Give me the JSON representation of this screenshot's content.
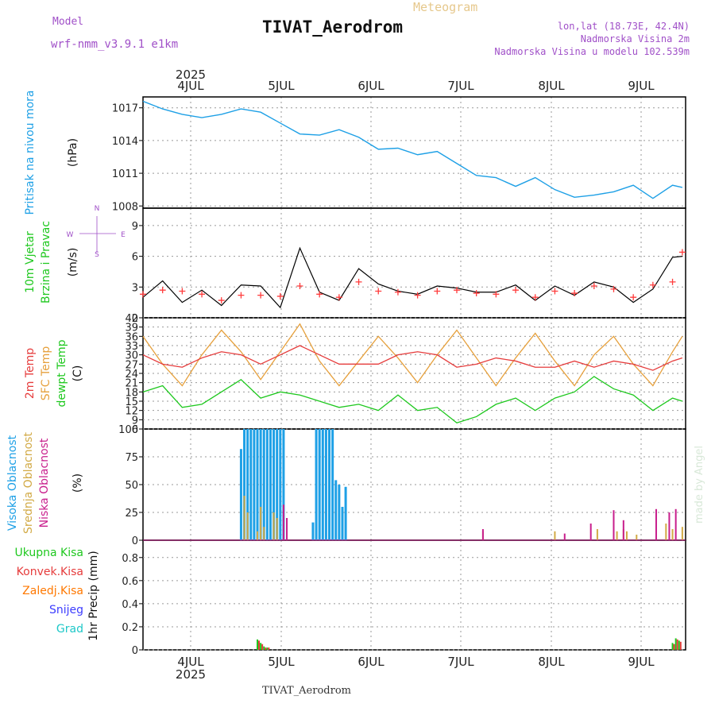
{
  "header": {
    "model_label": "Model",
    "model_name": "wrf-nmm_v3.9.1 e1km",
    "title": "TIVAT_Aerodrom",
    "product": "Meteogram",
    "lonlat": "lon,lat (18.73E, 42.4N)",
    "elevation": "Nadmorska Visina 2m",
    "model_elevation": "Nadmorska Visina u modelu 102.539m"
  },
  "footer": {
    "station": "TIVAT_Aerodrom",
    "credit": "made by Angel"
  },
  "colors": {
    "pressure": "#1ea0e6",
    "wind_speed": "#000000",
    "wind_gust": "#ff3c3c",
    "temp2m": "#e63c3c",
    "sfc_temp": "#e6a03c",
    "dewpoint": "#1ec81e",
    "cloud_high": "#1ea0e6",
    "cloud_mid": "#d2aa46",
    "cloud_low": "#c81e8c",
    "precip_total": "#1ec81e",
    "precip_conv": "#e63c3c",
    "precip_frozen": "#ff7800",
    "snow": "#3c3cff",
    "graupel": "#1ec8c8"
  },
  "chart_data": [
    {
      "type": "line",
      "panel": "pressure",
      "ylabel": [
        "Pritisak na nivou mora",
        "(hPa)"
      ],
      "x_labels": [
        "4JUL",
        "5JUL",
        "6JUL",
        "7JUL",
        "8JUL",
        "9JUL"
      ],
      "year_label": "2025",
      "yticks": [
        1008,
        1011,
        1014,
        1017
      ],
      "ylim": [
        1007.8,
        1018.0
      ],
      "x": [
        0,
        6,
        12,
        18,
        24,
        30,
        36,
        42,
        48,
        54,
        60,
        66,
        72,
        78,
        84,
        90,
        96,
        102,
        108,
        114,
        120,
        126,
        132,
        138,
        144,
        150,
        156,
        162,
        165
      ],
      "series": [
        {
          "values": [
            1017.6,
            1016.9,
            1016.4,
            1016.1,
            1016.4,
            1016.9,
            1016.6,
            1015.6,
            1014.6,
            1014.5,
            1015.0,
            1014.3,
            1013.2,
            1013.3,
            1012.7,
            1013.0,
            1011.9,
            1010.8,
            1010.6,
            1009.8,
            1010.6,
            1009.5,
            1008.8,
            1009.0,
            1009.3,
            1009.9,
            1008.7,
            1009.9,
            1009.7
          ]
        }
      ]
    },
    {
      "type": "line",
      "panel": "wind",
      "ylabel": [
        "10m Vjetar",
        "Brzina i Pravac",
        "(m/s)"
      ],
      "compass": [
        "N",
        "E",
        "S",
        "W"
      ],
      "yticks": [
        0,
        3,
        6,
        9
      ],
      "ylim": [
        0,
        10.7
      ],
      "x": [
        0,
        6,
        12,
        18,
        24,
        30,
        36,
        42,
        48,
        54,
        60,
        66,
        72,
        78,
        84,
        90,
        96,
        102,
        108,
        114,
        120,
        126,
        132,
        138,
        144,
        150,
        156,
        162,
        165
      ],
      "series": [
        {
          "name": "speed",
          "values": [
            2.0,
            3.6,
            1.5,
            2.7,
            1.2,
            3.2,
            3.1,
            1.0,
            6.8,
            2.5,
            1.7,
            4.8,
            3.3,
            2.6,
            2.3,
            3.1,
            2.9,
            2.5,
            2.5,
            3.2,
            1.7,
            3.1,
            2.2,
            3.5,
            3.0,
            1.5,
            2.8,
            5.9,
            6.0
          ]
        },
        {
          "name": "gust",
          "values": [
            2.3,
            2.7,
            2.6,
            2.3,
            1.7,
            2.2,
            2.2,
            2.1,
            3.1,
            2.3,
            2.0,
            3.5,
            2.6,
            2.5,
            2.2,
            2.6,
            2.7,
            2.4,
            2.3,
            2.7,
            2.0,
            2.6,
            2.4,
            3.1,
            2.8,
            2.0,
            3.2,
            3.5,
            6.4
          ]
        }
      ]
    },
    {
      "type": "line",
      "panel": "temperature",
      "ylabel": [
        "2m Temp",
        "SFC Temp",
        "dewpt Temp",
        "(C)"
      ],
      "yticks": [
        6,
        9,
        12,
        15,
        18,
        21,
        24,
        27,
        30,
        33,
        36,
        39,
        42
      ],
      "ylim": [
        6,
        42
      ],
      "x": [
        0,
        6,
        12,
        18,
        24,
        30,
        36,
        42,
        48,
        54,
        60,
        66,
        72,
        78,
        84,
        90,
        96,
        102,
        108,
        114,
        120,
        126,
        132,
        138,
        144,
        150,
        156,
        162,
        165
      ],
      "series": [
        {
          "name": "2m Temp",
          "values": [
            30,
            27,
            26,
            29,
            31,
            30,
            27,
            30,
            33,
            30,
            27,
            27,
            27,
            30,
            31,
            30,
            26,
            27,
            29,
            28,
            26,
            26,
            28,
            26,
            28,
            27,
            25,
            28,
            29
          ]
        },
        {
          "name": "SFC Temp",
          "values": [
            36,
            27,
            20,
            30,
            38,
            31,
            22,
            31,
            40,
            28,
            20,
            28,
            36,
            29,
            21,
            30,
            38,
            29,
            20,
            29,
            37,
            28,
            20,
            30,
            36,
            27,
            20,
            31,
            36
          ]
        },
        {
          "name": "dewpt Temp",
          "values": [
            18,
            20,
            13,
            14,
            18,
            22,
            16,
            18,
            17,
            15,
            13,
            14,
            12,
            17,
            12,
            13,
            8,
            10,
            14,
            16,
            12,
            16,
            18,
            23,
            19,
            17,
            12,
            16,
            15
          ]
        }
      ]
    },
    {
      "type": "bar",
      "panel": "cloud",
      "ylabel": [
        "Visoka Oblacnost",
        "Srednja Oblacnost",
        "Niska Oblacnost",
        "(%)"
      ],
      "yticks": [
        0,
        25,
        50,
        75,
        100
      ],
      "ylim": [
        0,
        100
      ],
      "series": [
        {
          "name": "Visoka Oblacnost",
          "x": [
            30,
            31,
            32,
            33,
            34,
            35,
            36,
            37,
            38,
            39,
            40,
            41,
            42,
            43,
            52,
            53,
            54,
            55,
            56,
            57,
            58,
            59,
            60,
            61,
            62
          ],
          "values": [
            82,
            100,
            100,
            100,
            100,
            100,
            100,
            100,
            100,
            100,
            100,
            100,
            100,
            100,
            16,
            100,
            100,
            100,
            100,
            100,
            100,
            54,
            50,
            30,
            48
          ]
        },
        {
          "name": "Srednja Oblacnost",
          "x": [
            31,
            32,
            35,
            36,
            37,
            40,
            41,
            104,
            126,
            139,
            145,
            147,
            148,
            151,
            160,
            162,
            165
          ],
          "values": [
            40,
            25,
            8,
            30,
            12,
            25,
            20,
            8,
            8,
            10,
            8,
            10,
            8,
            5,
            15,
            10,
            12
          ]
        },
        {
          "name": "Niska Oblacnost",
          "x": [
            43,
            44,
            104,
            129,
            137,
            144,
            147,
            157,
            161,
            163
          ],
          "values": [
            32,
            20,
            10,
            6,
            15,
            27,
            18,
            28,
            25,
            28
          ]
        }
      ]
    },
    {
      "type": "bar",
      "panel": "precipitation",
      "ylabel": [
        "1hr Precip (mm)"
      ],
      "legend": [
        "Ukupna Kisa",
        "Konvek.Kisa",
        "Zaledj.Kisa",
        "Snijeg",
        "Grad"
      ],
      "yticks": [
        0,
        0.2,
        0.4,
        0.6,
        0.8
      ],
      "ylim": [
        0,
        0.95
      ],
      "series": [
        {
          "name": "Ukupna Kisa",
          "x": [
            35,
            36,
            37,
            38,
            162,
            163,
            164
          ],
          "values": [
            0.09,
            0.06,
            0.03,
            0.02,
            0.06,
            0.1,
            0.08
          ]
        },
        {
          "name": "Konvek.Kisa",
          "x": [
            35,
            36,
            37,
            38,
            162,
            163,
            164
          ],
          "values": [
            0.08,
            0.05,
            0.02,
            0.02,
            0.05,
            0.09,
            0.07
          ]
        }
      ]
    }
  ]
}
